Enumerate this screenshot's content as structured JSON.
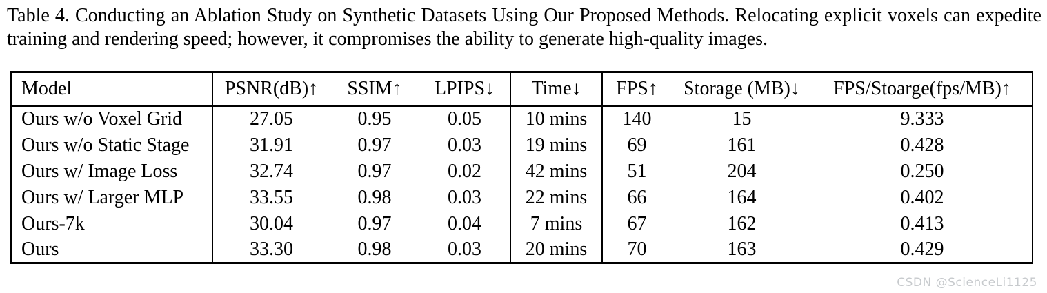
{
  "caption": {
    "label": "Table 4.",
    "line1": "Table 4.  Conducting an Ablation Study on Synthetic Datasets Using Our Proposed Methods.  Relocating explicit voxels can expedite",
    "line2": "training and rendering speed; however, it compromises the ability to generate high-quality images."
  },
  "table": {
    "columns": [
      {
        "label": "Model",
        "align": "left"
      },
      {
        "label": "PSNR(dB)↑"
      },
      {
        "label": "SSIM↑"
      },
      {
        "label": "LPIPS↓"
      },
      {
        "label": "Time↓"
      },
      {
        "label": "FPS↑"
      },
      {
        "label": "Storage (MB)↓"
      },
      {
        "label": "FPS/Stoarge(fps/MB)↑"
      }
    ],
    "rows": [
      {
        "cells": [
          {
            "v": "Ours w/o Voxel Grid"
          },
          {
            "v": "27.05"
          },
          {
            "v": "0.95"
          },
          {
            "v": "0.05"
          },
          {
            "v": "10 mins"
          },
          {
            "v": "140",
            "bold": true
          },
          {
            "v": "15",
            "bold": true
          },
          {
            "v": "9.333",
            "bold": true
          }
        ]
      },
      {
        "cells": [
          {
            "v": "Ours w/o Static Stage"
          },
          {
            "v": "31.91"
          },
          {
            "v": "0.97"
          },
          {
            "v": "0.03"
          },
          {
            "v": "19 mins"
          },
          {
            "v": "69"
          },
          {
            "v": "161"
          },
          {
            "v": "0.428"
          }
        ]
      },
      {
        "cells": [
          {
            "v": "Ours w/ Image Loss"
          },
          {
            "v": "32.74"
          },
          {
            "v": "0.97"
          },
          {
            "v": "0.02"
          },
          {
            "v": "42 mins"
          },
          {
            "v": "51"
          },
          {
            "v": "204"
          },
          {
            "v": "0.250"
          }
        ]
      },
      {
        "cells": [
          {
            "v": "Ours w/ Larger MLP"
          },
          {
            "v": "33.55",
            "bold": true
          },
          {
            "v": "0.98",
            "bold": true
          },
          {
            "v": "0.03"
          },
          {
            "v": "22 mins"
          },
          {
            "v": "66"
          },
          {
            "v": "164"
          },
          {
            "v": "0.402"
          }
        ]
      },
      {
        "cells": [
          {
            "v": "Ours-7k"
          },
          {
            "v": "30.04"
          },
          {
            "v": "0.97"
          },
          {
            "v": "0.04"
          },
          {
            "v": "7 mins",
            "bold": true
          },
          {
            "v": "67"
          },
          {
            "v": "162"
          },
          {
            "v": "0.413"
          }
        ]
      },
      {
        "cells": [
          {
            "v": "Ours"
          },
          {
            "v": "33.30"
          },
          {
            "v": "0.98"
          },
          {
            "v": "0.03",
            "bold": true
          },
          {
            "v": "20 mins"
          },
          {
            "v": "70"
          },
          {
            "v": "163"
          },
          {
            "v": "0.429"
          }
        ]
      }
    ]
  },
  "watermark": {
    "text": "CSDN @ScienceLi1125",
    "color": "#c7cacd"
  }
}
